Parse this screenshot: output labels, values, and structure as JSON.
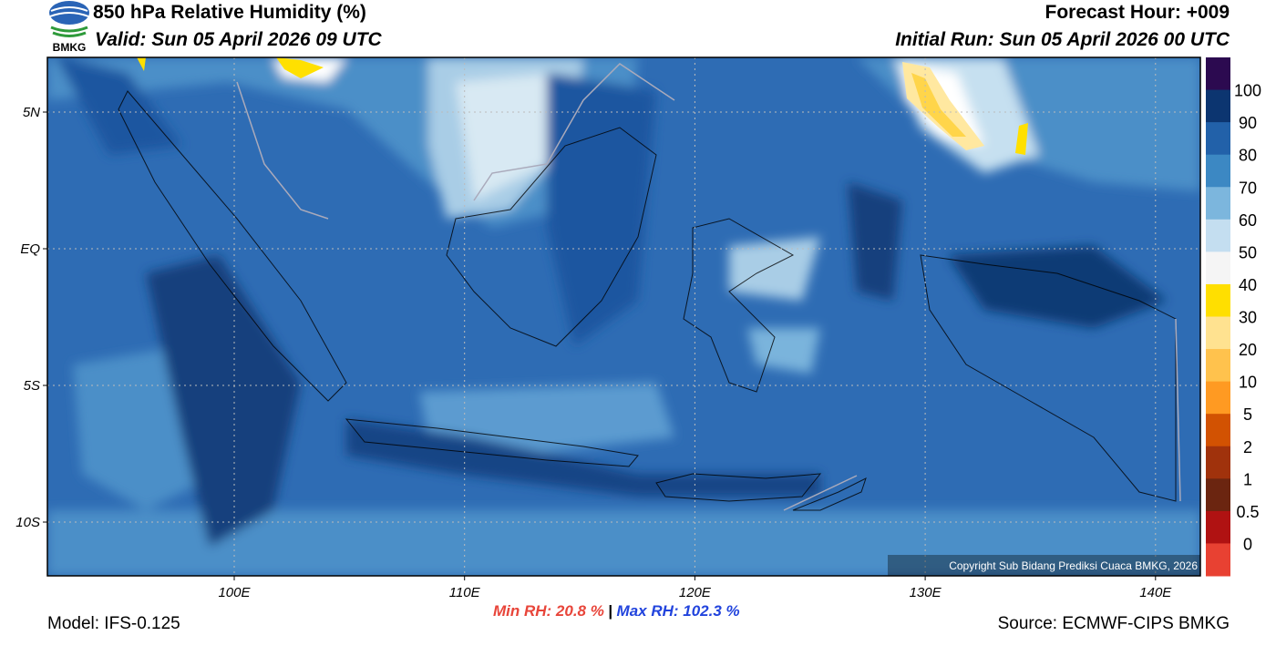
{
  "header": {
    "logo_text": "BMKG",
    "title": "850 hPa Relative Humidity (%)",
    "valid": "Valid: Sun 05 April 2026 09 UTC",
    "forecast_hour": "Forecast Hour: +009",
    "initial_run": "Initial Run: Sun 05 April 2026 00 UTC"
  },
  "map": {
    "lat_labels": [
      "5N",
      "EQ",
      "5S",
      "10S"
    ],
    "lon_labels": [
      "100E",
      "110E",
      "120E",
      "130E",
      "140E"
    ],
    "copyright": "Copyright Sub Bidang Prediksi Cuaca BMKG, 2026"
  },
  "colorbar": {
    "labels": [
      "100",
      "90",
      "80",
      "70",
      "60",
      "50",
      "40",
      "30",
      "20",
      "10",
      "5",
      "2",
      "1",
      "0.5",
      "0"
    ],
    "colors": [
      "#2c0a50",
      "#0c3570",
      "#2261a9",
      "#3c88c3",
      "#7cb6dd",
      "#c4def0",
      "#f5f5f5",
      "#ffdf00",
      "#ffe290",
      "#ffc24d",
      "#ff9a22",
      "#d25202",
      "#a0320c",
      "#6b2510",
      "#b01212",
      "#e84132"
    ]
  },
  "footer": {
    "model": "Model: IFS-0.125",
    "min_rh": "Min RH:  20.8 %",
    "separator": "|",
    "max_rh": "Max RH: 102.3 %",
    "source": "Source: ECMWF-CIPS BMKG"
  }
}
